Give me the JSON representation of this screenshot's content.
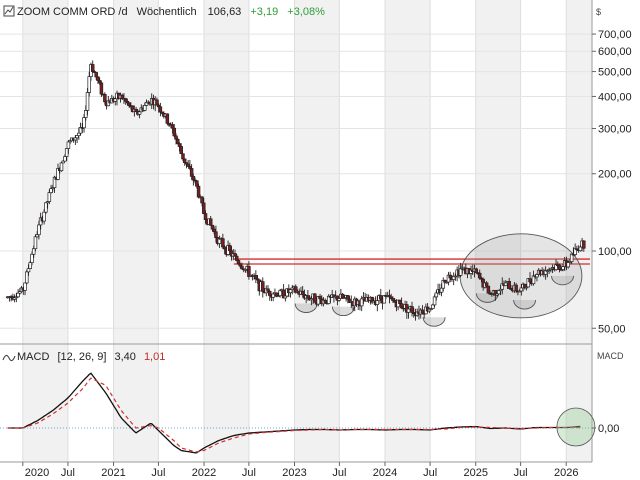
{
  "header": {
    "symbol": "ZOOM COMM ORD /d",
    "interval": "Wöchentlich",
    "last": "106,63",
    "change": "+3,19",
    "change_pct": "+3,08%",
    "currency": "$",
    "colors": {
      "positive": "#2e9e38",
      "negative": "#c62828"
    }
  },
  "macd_header": {
    "label": "MACD",
    "params": "[12, 26, 9]",
    "macd_value": "3,40",
    "signal_value": "1,01",
    "right_label": "MACD",
    "icon": "macd-wave-icon"
  },
  "price_axis": {
    "scale": "log",
    "ticks": [
      {
        "value": 700,
        "label": "700,00"
      },
      {
        "value": 600,
        "label": "600,00"
      },
      {
        "value": 500,
        "label": "500,00"
      },
      {
        "value": 400,
        "label": "400,00"
      },
      {
        "value": 300,
        "label": "300,00"
      },
      {
        "value": 200,
        "label": "200,00"
      },
      {
        "value": 100,
        "label": "100,00"
      },
      {
        "value": 50,
        "label": "50,00"
      }
    ]
  },
  "macd_axis": {
    "ticks": [
      {
        "value": 0,
        "label": "0,00"
      }
    ]
  },
  "time_axis": {
    "labels": [
      "2020",
      "Jul",
      "2021",
      "Jul",
      "2022",
      "Jul",
      "2023",
      "Jul",
      "2024",
      "Jul",
      "2025",
      "Jul",
      "2026"
    ],
    "positions": [
      "2020-01",
      "2020-07",
      "2021-01",
      "2021-07",
      "2022-01",
      "2022-07",
      "2023-01",
      "2023-07",
      "2024-01",
      "2024-07",
      "2025-01",
      "2025-07",
      "2026-01"
    ]
  },
  "chart_data": {
    "type": "line",
    "x": [
      "2019-11",
      "2020-01",
      "2020-03",
      "2020-05",
      "2020-07",
      "2020-09",
      "2020-10",
      "2020-12",
      "2021-02",
      "2021-04",
      "2021-06",
      "2021-07",
      "2021-09",
      "2021-10",
      "2021-12",
      "2022-01",
      "2022-03",
      "2022-05",
      "2022-07",
      "2022-09",
      "2022-11",
      "2023-01",
      "2023-03",
      "2023-05",
      "2023-07",
      "2023-09",
      "2023-11",
      "2024-01",
      "2024-03",
      "2024-05",
      "2024-07",
      "2024-09",
      "2024-11",
      "2025-01",
      "2025-03",
      "2025-05",
      "2025-07",
      "2025-09",
      "2025-11",
      "2026-01",
      "2026-02",
      "2026-03"
    ],
    "series": [
      {
        "name": "ZOOM COMM ORD",
        "values": [
          66,
          70,
          120,
          180,
          260,
          300,
          540,
          380,
          400,
          340,
          390,
          370,
          290,
          240,
          180,
          140,
          110,
          95,
          82,
          70,
          68,
          70,
          66,
          64,
          66,
          63,
          64,
          66,
          62,
          58,
          60,
          78,
          85,
          82,
          68,
          74,
          70,
          82,
          86,
          88,
          98,
          106.63
        ]
      },
      {
        "name": "MACD",
        "values": [
          0,
          0,
          15,
          35,
          60,
          95,
          110,
          70,
          20,
          -10,
          10,
          -5,
          -35,
          -45,
          -50,
          -40,
          -25,
          -15,
          -10,
          -8,
          -6,
          -4,
          -3,
          -3,
          -4,
          -3,
          -3,
          -4,
          -3,
          -3,
          -4,
          0,
          2,
          3,
          -1,
          0,
          -2,
          1,
          1,
          1,
          2,
          3.4
        ]
      },
      {
        "name": "Signal",
        "values": [
          0,
          0,
          10,
          28,
          50,
          80,
          100,
          85,
          35,
          0,
          5,
          0,
          -25,
          -40,
          -48,
          -45,
          -30,
          -20,
          -12,
          -9,
          -7,
          -5,
          -4,
          -3,
          -4,
          -3,
          -3,
          -3,
          -3,
          -3,
          -3,
          -2,
          1,
          2,
          1,
          0,
          -1,
          0,
          1,
          1,
          1,
          1.01
        ]
      }
    ],
    "ylim_price": [
      45,
      780
    ],
    "ylim_macd": [
      -60,
      120
    ],
    "annotations": {
      "resistance_levels": [
        93,
        89
      ],
      "cup_markers": [
        "2023-02",
        "2023-07",
        "2024-07",
        "2025-02",
        "2025-07",
        "2025-12"
      ],
      "base_ellipse": {
        "from": "2024-12",
        "to": "2026-02"
      },
      "macd_highlight": "2026-02"
    },
    "grid": true
  }
}
